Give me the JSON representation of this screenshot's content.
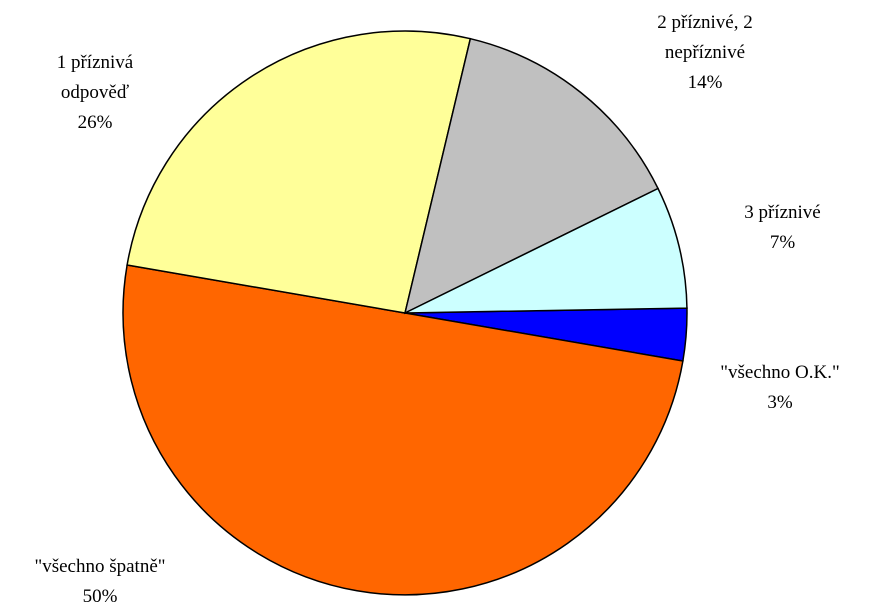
{
  "chart_data": {
    "type": "pie",
    "categories": [
      "\"všechno O.K.\"",
      "\"všechno špatně\"",
      "1 příznivá odpověď",
      "2 příznivé, 2 nepříznivé",
      "3 příznivé"
    ],
    "values": [
      3,
      50,
      26,
      14,
      7
    ],
    "value_labels": [
      "3%",
      "50%",
      "26%",
      "14%",
      "7%"
    ],
    "colors": [
      "#0000ff",
      "#ff6600",
      "#ffff99",
      "#c0c0c0",
      "#ccffff"
    ]
  }
}
